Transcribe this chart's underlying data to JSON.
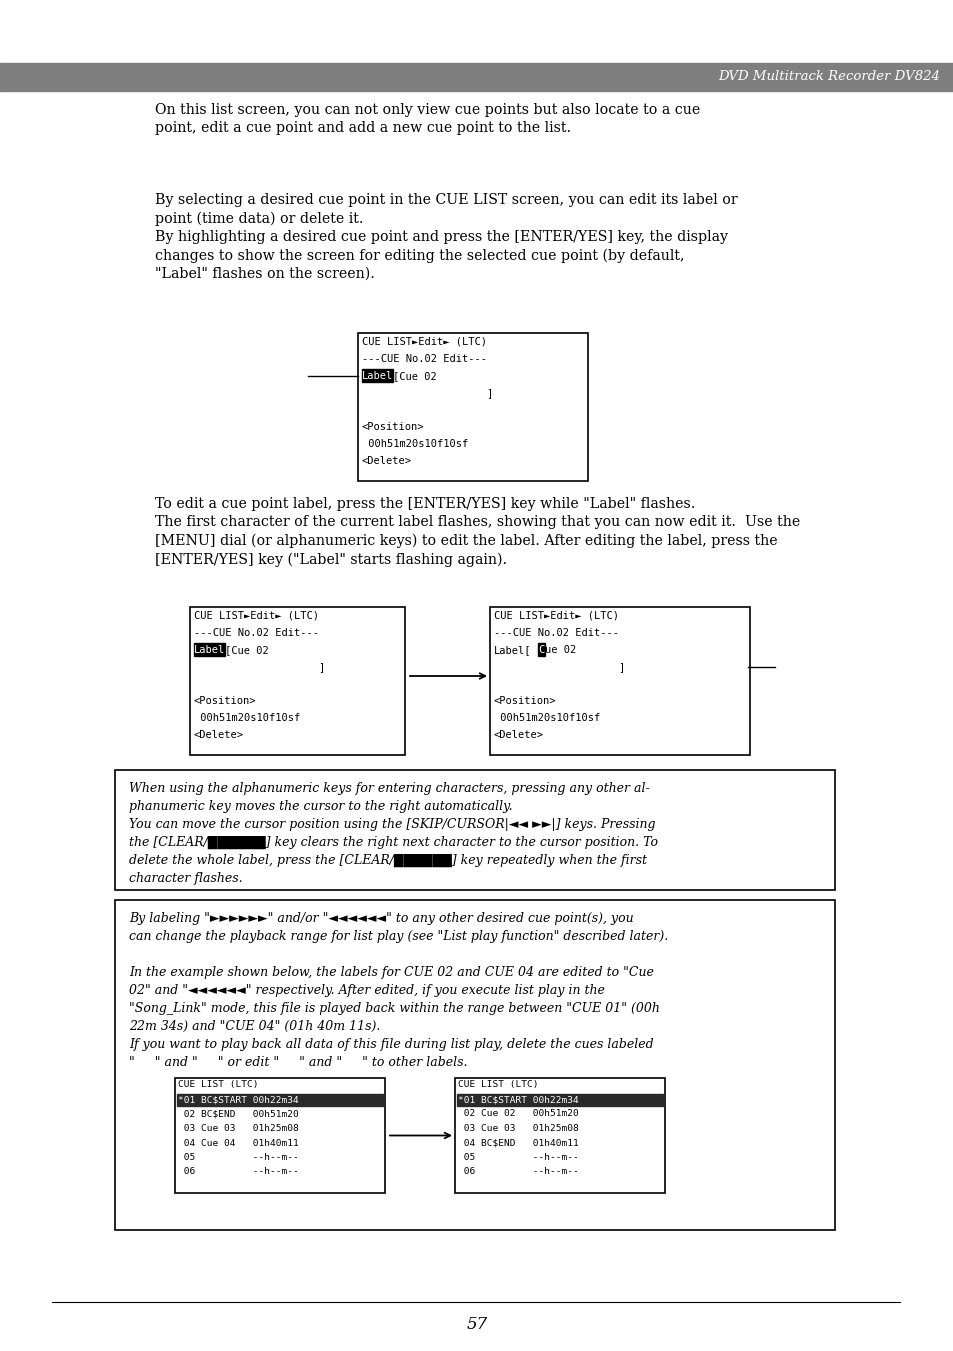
{
  "bg_color": "#ffffff",
  "header_bg": "#7f7f7f",
  "header_text": "DVD Multitrack Recorder DV824",
  "header_text_color": "#ffffff",
  "page_number": "57",
  "body_text_color": "#000000",
  "para1": "On this list screen, you can not only view cue points but also locate to a cue\npoint, edit a cue point and add a new cue point to the list.",
  "para2": "By selecting a desired cue point in the CUE LIST screen, you can edit its label or\npoint (time data) or delete it.\nBy highlighting a desired cue point and press the [ENTER/YES] key, the display\nchanges to show the screen for editing the selected cue point (by default,\n\"Label\" flashes on the screen).",
  "para3": "To edit a cue point label, press the [ENTER/YES] key while \"Label\" flashes.\nThe first character of the current label flashes, showing that you can now edit it.  Use the\n[MENU] dial (or alphanumeric keys) to edit the label. After editing the label, press the\n[ENTER/YES] key (\"Label\" starts flashing again).",
  "note_line1": "When using the alphanumeric keys for entering characters, pressing any other al-",
  "note_line2": "phanumeric key moves the cursor to the right automatically.",
  "note_line3": "You can move the cursor position using the [SKIP/CURSOR|◄◄ ►►|] keys. Pressing",
  "note_line4": "the [CLEAR/██████] key clears the right next character to the cursor position. To",
  "note_line5": "delete the whole label, press the [CLEAR/██████] key repeatedly when the first",
  "note_line6": "character flashes.",
  "lb_line1": "By labeling \"►►►►►►\" and/or \"◄◄◄◄◄◄\" to any other desired cue point(s), you",
  "lb_line2": "can change the playback range for list play (see \"List play function\" described later).",
  "lb_line3": "",
  "lb_line4": "In the example shown below, the labels for CUE 02 and CUE 04 are edited to \"Cue",
  "lb_line5": "02\" and \"◄◄◄◄◄◄\" respectively. After edited, if you execute list play in the",
  "lb_line6": "\"Song_Link\" mode, this file is played back within the range between \"CUE 01\" (00h",
  "lb_line7": "22m 34s) and \"CUE 04\" (01h 40m 11s).",
  "lb_line8": "If you want to play back all data of this file during list play, delete the cues labeled",
  "lb_line9": "\"     \" and \"     \" or edit \"     \" and \"     \" to other labels.",
  "screen1_lines": [
    "CUE LIST►Edit► (LTC)",
    "---CUE No.02 Edit---",
    "Cue 02",
    "                    ]",
    "",
    "<Position>",
    " 00h51m20s10f10sf",
    "<Delete>"
  ],
  "screen2a_lines": [
    "CUE LIST►Edit► (LTC)",
    "---CUE No.02 Edit---",
    "Cue 02",
    "                    ]",
    "",
    "<Position>",
    " 00h51m20s10f10sf",
    "<Delete>"
  ],
  "screen2b_lines": [
    "CUE LIST►Edit► (LTC)",
    "---CUE No.02 Edit---",
    "ue 02",
    "                    ]",
    "",
    "<Position>",
    " 00h51m20s10f10sf",
    "<Delete>"
  ],
  "screen3a_lines": [
    "CUE LIST (LTC)",
    "*01 BC$START 00h22m34",
    " 02 BC$END   00h51m20",
    " 03 Cue 03   01h25m08",
    " 04 Cue 04   01h40m11",
    " 05          --h--m--",
    " 06          --h--m--"
  ],
  "screen3b_lines": [
    "CUE LIST (LTC)",
    "*01 BC$START 00h22m34",
    " 02 Cue 02   00h51m20",
    " 03 Cue 03   01h25m08",
    " 04 BC$END   01h40m11",
    " 05          --h--m--",
    " 06          --h--m--"
  ]
}
